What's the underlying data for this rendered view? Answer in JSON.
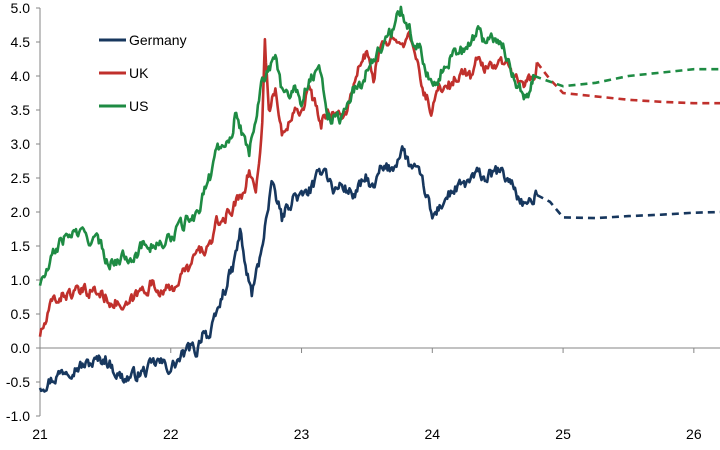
{
  "chart_data": {
    "type": "line",
    "title": "",
    "xlabel": "",
    "ylabel": "",
    "xlim": [
      21,
      26.2
    ],
    "ylim": [
      -1.0,
      5.0
    ],
    "x_ticks": [
      "21",
      "22",
      "23",
      "24",
      "25",
      "26"
    ],
    "y_ticks": [
      "5.0",
      "4.5",
      "4.0",
      "3.5",
      "3.0",
      "2.5",
      "2.0",
      "1.5",
      "1.0",
      "0.5",
      "0.0",
      "-0.5",
      "-1.0"
    ],
    "grid": false,
    "legend": "top-left",
    "series": [
      {
        "name": "Germany",
        "color": "#17375e",
        "actual": [
          [
            21.0,
            -0.55
          ],
          [
            21.1,
            -0.45
          ],
          [
            21.2,
            -0.3
          ],
          [
            21.35,
            -0.25
          ],
          [
            21.5,
            -0.15
          ],
          [
            21.6,
            -0.4
          ],
          [
            21.65,
            -0.45
          ],
          [
            21.8,
            -0.35
          ],
          [
            21.9,
            -0.2
          ],
          [
            22.0,
            -0.3
          ],
          [
            22.05,
            -0.2
          ],
          [
            22.15,
            0.0
          ],
          [
            22.2,
            -0.05
          ],
          [
            22.25,
            0.3
          ],
          [
            22.3,
            0.15
          ],
          [
            22.4,
            0.8
          ],
          [
            22.48,
            1.2
          ],
          [
            22.53,
            1.7
          ],
          [
            22.58,
            1.1
          ],
          [
            22.62,
            0.8
          ],
          [
            22.68,
            1.3
          ],
          [
            22.72,
            1.8
          ],
          [
            22.78,
            2.4
          ],
          [
            22.85,
            1.9
          ],
          [
            22.9,
            2.1
          ],
          [
            22.95,
            2.25
          ],
          [
            23.0,
            2.2
          ],
          [
            23.1,
            2.4
          ],
          [
            23.17,
            2.7
          ],
          [
            23.25,
            2.3
          ],
          [
            23.3,
            2.4
          ],
          [
            23.4,
            2.25
          ],
          [
            23.5,
            2.5
          ],
          [
            23.55,
            2.3
          ],
          [
            23.6,
            2.6
          ],
          [
            23.7,
            2.65
          ],
          [
            23.77,
            2.95
          ],
          [
            23.82,
            2.7
          ],
          [
            23.88,
            2.6
          ],
          [
            23.95,
            2.3
          ],
          [
            24.0,
            1.9
          ],
          [
            24.08,
            2.15
          ],
          [
            24.15,
            2.3
          ],
          [
            24.25,
            2.4
          ],
          [
            24.35,
            2.55
          ],
          [
            24.42,
            2.5
          ],
          [
            24.5,
            2.6
          ],
          [
            24.6,
            2.45
          ],
          [
            24.68,
            2.15
          ],
          [
            24.75,
            2.1
          ],
          [
            24.8,
            2.25
          ]
        ],
        "forecast": [
          [
            24.8,
            2.25
          ],
          [
            24.9,
            2.15
          ],
          [
            25.0,
            1.92
          ],
          [
            25.25,
            1.91
          ],
          [
            25.5,
            1.94
          ],
          [
            25.75,
            1.96
          ],
          [
            26.0,
            1.99
          ],
          [
            26.2,
            2.0
          ]
        ]
      },
      {
        "name": "UK",
        "color": "#c0302c",
        "actual": [
          [
            21.0,
            0.2
          ],
          [
            21.05,
            0.4
          ],
          [
            21.1,
            0.7
          ],
          [
            21.2,
            0.8
          ],
          [
            21.3,
            0.8
          ],
          [
            21.4,
            0.85
          ],
          [
            21.5,
            0.75
          ],
          [
            21.6,
            0.65
          ],
          [
            21.65,
            0.55
          ],
          [
            21.75,
            0.8
          ],
          [
            21.85,
            0.95
          ],
          [
            21.9,
            0.85
          ],
          [
            21.95,
            0.9
          ],
          [
            22.0,
            0.8
          ],
          [
            22.05,
            1.0
          ],
          [
            22.15,
            1.2
          ],
          [
            22.2,
            1.4
          ],
          [
            22.3,
            1.5
          ],
          [
            22.35,
            1.8
          ],
          [
            22.45,
            2.0
          ],
          [
            22.55,
            2.3
          ],
          [
            22.6,
            2.6
          ],
          [
            22.65,
            2.3
          ],
          [
            22.7,
            3.3
          ],
          [
            22.72,
            4.5
          ],
          [
            22.75,
            3.5
          ],
          [
            22.8,
            3.8
          ],
          [
            22.85,
            3.1
          ],
          [
            22.95,
            3.6
          ],
          [
            23.0,
            3.5
          ],
          [
            23.05,
            3.8
          ],
          [
            23.1,
            3.6
          ],
          [
            23.15,
            3.3
          ],
          [
            23.2,
            3.5
          ],
          [
            23.3,
            3.4
          ],
          [
            23.35,
            3.5
          ],
          [
            23.4,
            3.8
          ],
          [
            23.45,
            4.2
          ],
          [
            23.5,
            4.3
          ],
          [
            23.55,
            4.0
          ],
          [
            23.6,
            4.35
          ],
          [
            23.67,
            4.5
          ],
          [
            23.72,
            4.65
          ],
          [
            23.78,
            4.55
          ],
          [
            23.85,
            4.5
          ],
          [
            23.9,
            4.0
          ],
          [
            23.95,
            3.7
          ],
          [
            24.0,
            3.5
          ],
          [
            24.05,
            3.8
          ],
          [
            24.1,
            3.9
          ],
          [
            24.15,
            3.85
          ],
          [
            24.2,
            4.05
          ],
          [
            24.3,
            4.0
          ],
          [
            24.35,
            4.25
          ],
          [
            24.4,
            4.1
          ],
          [
            24.45,
            4.2
          ],
          [
            24.5,
            4.15
          ],
          [
            24.55,
            4.25
          ],
          [
            24.6,
            4.05
          ],
          [
            24.65,
            4.0
          ],
          [
            24.7,
            3.8
          ],
          [
            24.73,
            3.9
          ],
          [
            24.78,
            4.05
          ],
          [
            24.8,
            4.2
          ]
        ],
        "forecast": [
          [
            24.8,
            4.2
          ],
          [
            24.9,
            3.95
          ],
          [
            25.0,
            3.75
          ],
          [
            25.25,
            3.7
          ],
          [
            25.5,
            3.65
          ],
          [
            25.75,
            3.62
          ],
          [
            26.0,
            3.6
          ],
          [
            26.2,
            3.6
          ]
        ]
      },
      {
        "name": "US",
        "color": "#1e8b43",
        "actual": [
          [
            21.0,
            0.95
          ],
          [
            21.05,
            1.1
          ],
          [
            21.1,
            1.35
          ],
          [
            21.15,
            1.55
          ],
          [
            21.25,
            1.7
          ],
          [
            21.35,
            1.65
          ],
          [
            21.45,
            1.55
          ],
          [
            21.5,
            1.35
          ],
          [
            21.55,
            1.25
          ],
          [
            21.65,
            1.35
          ],
          [
            21.75,
            1.4
          ],
          [
            21.8,
            1.55
          ],
          [
            21.9,
            1.5
          ],
          [
            22.0,
            1.6
          ],
          [
            22.05,
            1.75
          ],
          [
            22.1,
            1.8
          ],
          [
            22.15,
            1.95
          ],
          [
            22.2,
            1.9
          ],
          [
            22.25,
            2.3
          ],
          [
            22.3,
            2.5
          ],
          [
            22.35,
            2.95
          ],
          [
            22.4,
            3.0
          ],
          [
            22.47,
            3.2
          ],
          [
            22.5,
            3.5
          ],
          [
            22.55,
            3.1
          ],
          [
            22.6,
            2.9
          ],
          [
            22.65,
            3.4
          ],
          [
            22.7,
            4.0
          ],
          [
            22.75,
            4.1
          ],
          [
            22.8,
            4.2
          ],
          [
            22.85,
            3.8
          ],
          [
            22.9,
            3.7
          ],
          [
            22.95,
            3.9
          ],
          [
            23.0,
            3.6
          ],
          [
            23.05,
            3.95
          ],
          [
            23.15,
            4.1
          ],
          [
            23.2,
            3.4
          ],
          [
            23.3,
            3.35
          ],
          [
            23.35,
            3.6
          ],
          [
            23.4,
            3.8
          ],
          [
            23.45,
            3.85
          ],
          [
            23.5,
            4.1
          ],
          [
            23.55,
            4.3
          ],
          [
            23.6,
            4.4
          ],
          [
            23.67,
            4.6
          ],
          [
            23.72,
            4.75
          ],
          [
            23.76,
            5.0
          ],
          [
            23.8,
            4.8
          ],
          [
            23.85,
            4.55
          ],
          [
            23.92,
            4.35
          ],
          [
            23.98,
            3.9
          ],
          [
            24.05,
            4.0
          ],
          [
            24.1,
            4.2
          ],
          [
            24.15,
            4.3
          ],
          [
            24.2,
            4.4
          ],
          [
            24.25,
            4.35
          ],
          [
            24.3,
            4.5
          ],
          [
            24.35,
            4.7
          ],
          [
            24.4,
            4.5
          ],
          [
            24.45,
            4.6
          ],
          [
            24.5,
            4.55
          ],
          [
            24.55,
            4.4
          ],
          [
            24.6,
            4.1
          ],
          [
            24.65,
            3.9
          ],
          [
            24.7,
            3.7
          ],
          [
            24.75,
            3.8
          ],
          [
            24.78,
            4.0
          ]
        ],
        "forecast": [
          [
            24.78,
            4.0
          ],
          [
            24.85,
            3.95
          ],
          [
            25.0,
            3.85
          ],
          [
            25.25,
            3.9
          ],
          [
            25.5,
            4.0
          ],
          [
            25.75,
            4.05
          ],
          [
            26.0,
            4.1
          ],
          [
            26.2,
            4.1
          ]
        ]
      }
    ]
  }
}
